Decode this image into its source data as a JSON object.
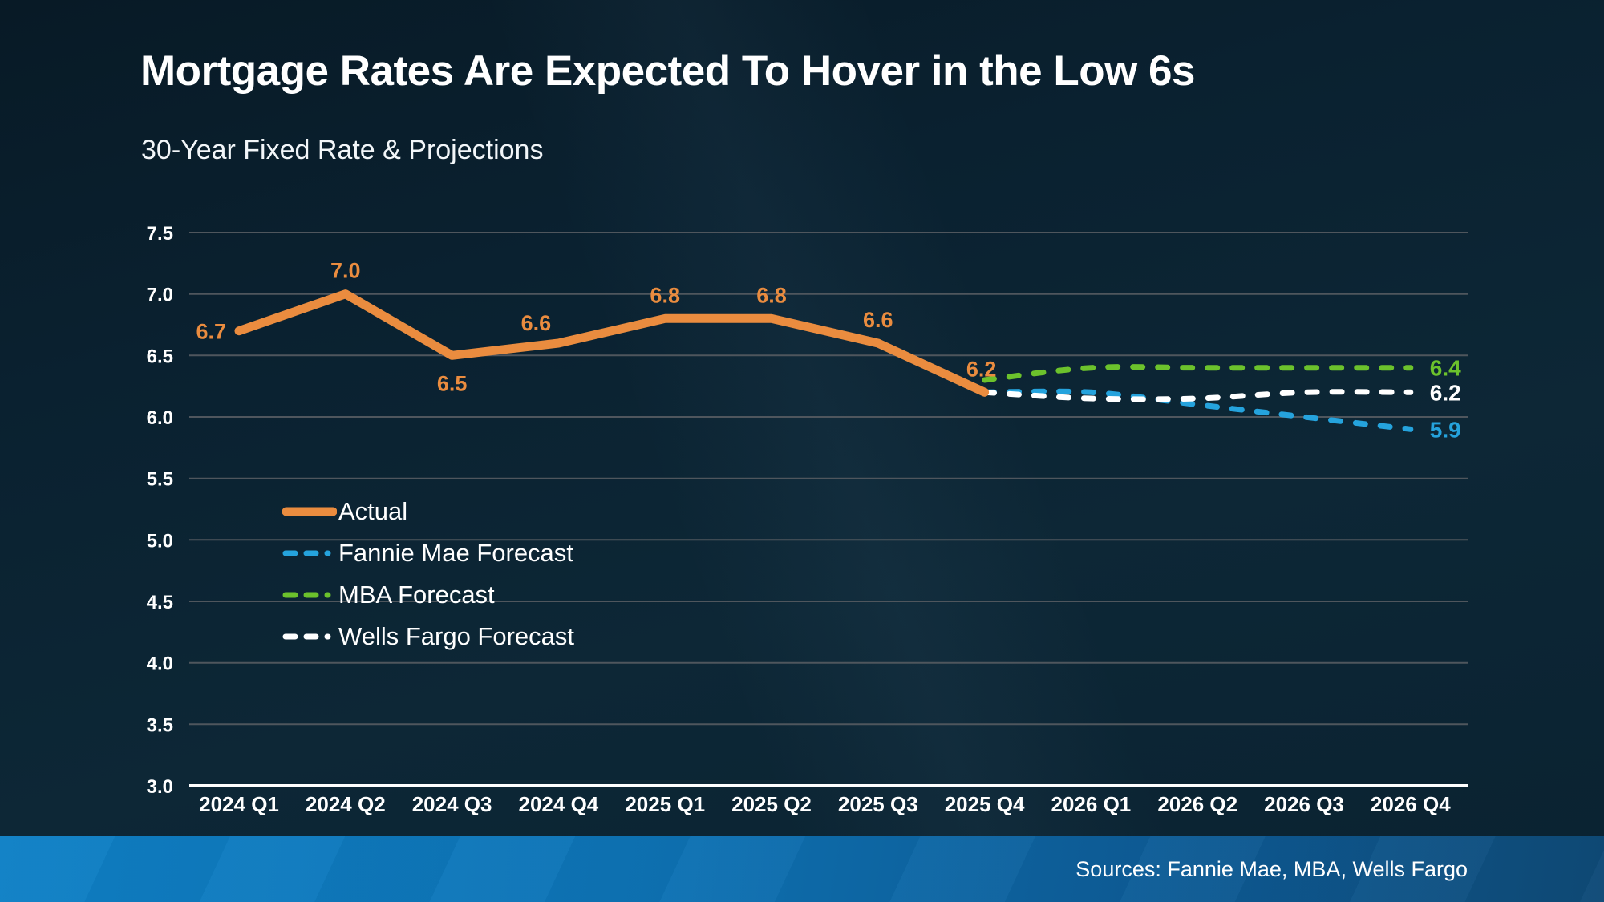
{
  "title": "Mortgage Rates Are Expected To Hover in the Low 6s",
  "subtitle": "30-Year Fixed Rate & Projections",
  "source": "Sources: Fannie Mae, MBA, Wells Fargo",
  "colors": {
    "background": "#0a2130",
    "gridline": "#4f565d",
    "axis_line": "#ffffff",
    "text": "#ffffff",
    "actual": "#EA8C3F",
    "fannie_mae": "#25A3DD",
    "mba": "#6CC22C",
    "wells_fargo": "#FFFFFF",
    "bottom_bar_left": "#0e80c6",
    "bottom_bar_right": "#0e4a77"
  },
  "chart_data": {
    "type": "line",
    "title": "30-Year Fixed Rate & Projections",
    "categories": [
      "2024 Q1",
      "2024 Q2",
      "2024 Q3",
      "2024 Q4",
      "2025 Q1",
      "2025 Q2",
      "2025 Q3",
      "2025 Q4",
      "2026 Q1",
      "2026 Q2",
      "2026 Q3",
      "2026 Q4"
    ],
    "ylim": [
      3.0,
      7.5
    ],
    "yticks": [
      7.5,
      7.0,
      6.5,
      6.0,
      5.5,
      5.0,
      4.5,
      4.0,
      3.5,
      3.0
    ],
    "ytick_labels": [
      "7.5",
      "7.0",
      "6.5",
      "6.0",
      "5.5",
      "5.0",
      "4.5",
      "4.0",
      "3.5",
      "3.0"
    ],
    "grid": true,
    "legend_position": "inside-left-middle",
    "series": [
      {
        "name": "Actual",
        "color": "#EA8C3F",
        "style": "solid",
        "values": [
          6.7,
          7.0,
          6.5,
          6.6,
          6.8,
          6.8,
          6.6,
          6.2,
          null,
          null,
          null,
          null
        ],
        "point_labels": [
          "6.7",
          "7.0",
          "6.5",
          "6.6",
          "6.8",
          "6.8",
          "6.6",
          "6.2"
        ]
      },
      {
        "name": "Fannie Mae Forecast",
        "color": "#25A3DD",
        "style": "dashed",
        "values": [
          null,
          null,
          null,
          null,
          null,
          null,
          null,
          6.2,
          6.2,
          6.1,
          6.0,
          5.9
        ],
        "end_label": "5.9"
      },
      {
        "name": "MBA Forecast",
        "color": "#6CC22C",
        "style": "dashed",
        "values": [
          null,
          null,
          null,
          null,
          null,
          null,
          null,
          6.3,
          6.4,
          6.4,
          6.4,
          6.4
        ],
        "end_label": "6.4"
      },
      {
        "name": "Wells Fargo Forecast",
        "color": "#FFFFFF",
        "style": "dashed",
        "values": [
          null,
          null,
          null,
          null,
          null,
          null,
          null,
          6.2,
          6.15,
          6.15,
          6.2,
          6.2
        ],
        "end_label": "6.2"
      }
    ]
  }
}
